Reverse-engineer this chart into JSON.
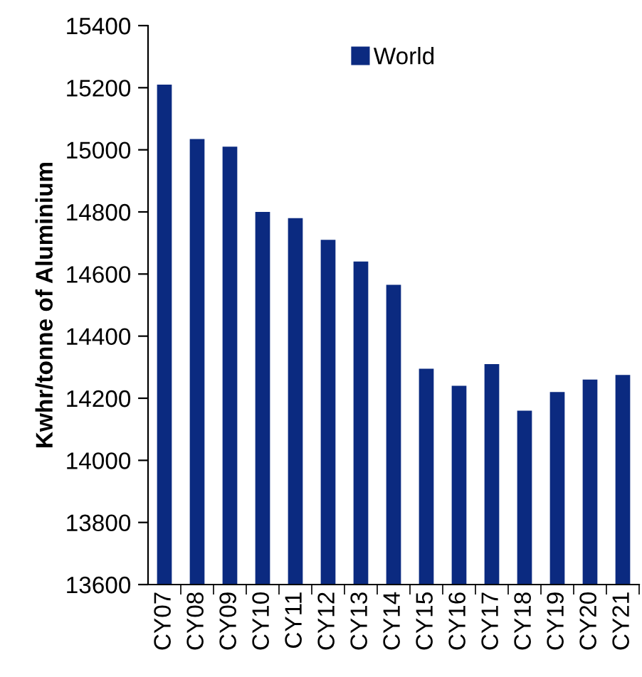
{
  "chart_data": {
    "type": "bar",
    "ylabel": "Kwhr/tonne of Aluminium",
    "categories": [
      "CY07",
      "CY08",
      "CY09",
      "CY10",
      "CY11",
      "CY12",
      "CY13",
      "CY14",
      "CY15",
      "CY16",
      "CY17",
      "CY18",
      "CY19",
      "CY20",
      "CY21"
    ],
    "series": [
      {
        "name": "World",
        "color": "#0b2a80",
        "values": [
          15210,
          15035,
          15010,
          14800,
          14780,
          14710,
          14640,
          14565,
          14295,
          14240,
          14310,
          14160,
          14220,
          14260,
          14275
        ]
      }
    ],
    "ylim": [
      13600,
      15400
    ],
    "yticks": [
      13600,
      13800,
      14000,
      14200,
      14400,
      14600,
      14800,
      15000,
      15200,
      15400
    ],
    "grid": false,
    "legend": "top"
  }
}
